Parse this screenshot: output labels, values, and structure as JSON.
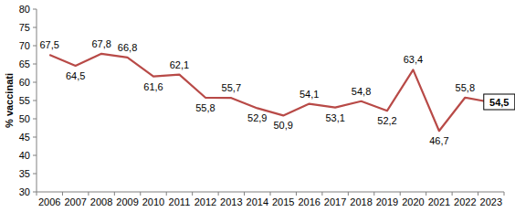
{
  "chart_data": {
    "type": "line",
    "y_label": "% vaccinati",
    "categories": [
      "2006",
      "2007",
      "2008",
      "2009",
      "2010",
      "2011",
      "2012",
      "2013",
      "2014",
      "2015",
      "2016",
      "2017",
      "2018",
      "2019",
      "2020",
      "2021",
      "2022",
      "2023"
    ],
    "values": [
      67.5,
      64.5,
      67.8,
      66.8,
      61.6,
      62.1,
      55.8,
      55.7,
      52.9,
      50.9,
      54.1,
      53.1,
      54.8,
      52.2,
      63.4,
      46.7,
      55.8,
      54.5
    ],
    "value_labels": [
      "67,5",
      "64,5",
      "67,8",
      "66,8",
      "61,6",
      "62,1",
      "55,8",
      "55,7",
      "52,9",
      "50,9",
      "54,1",
      "53,1",
      "54,8",
      "52,2",
      "63,4",
      "46,7",
      "55,8",
      "54,5"
    ],
    "color": "#b84a47",
    "ylim": [
      30,
      80
    ],
    "yticks": [
      30,
      35,
      40,
      45,
      50,
      55,
      60,
      65,
      70,
      75,
      80
    ],
    "grid": false,
    "data_labels": true
  }
}
